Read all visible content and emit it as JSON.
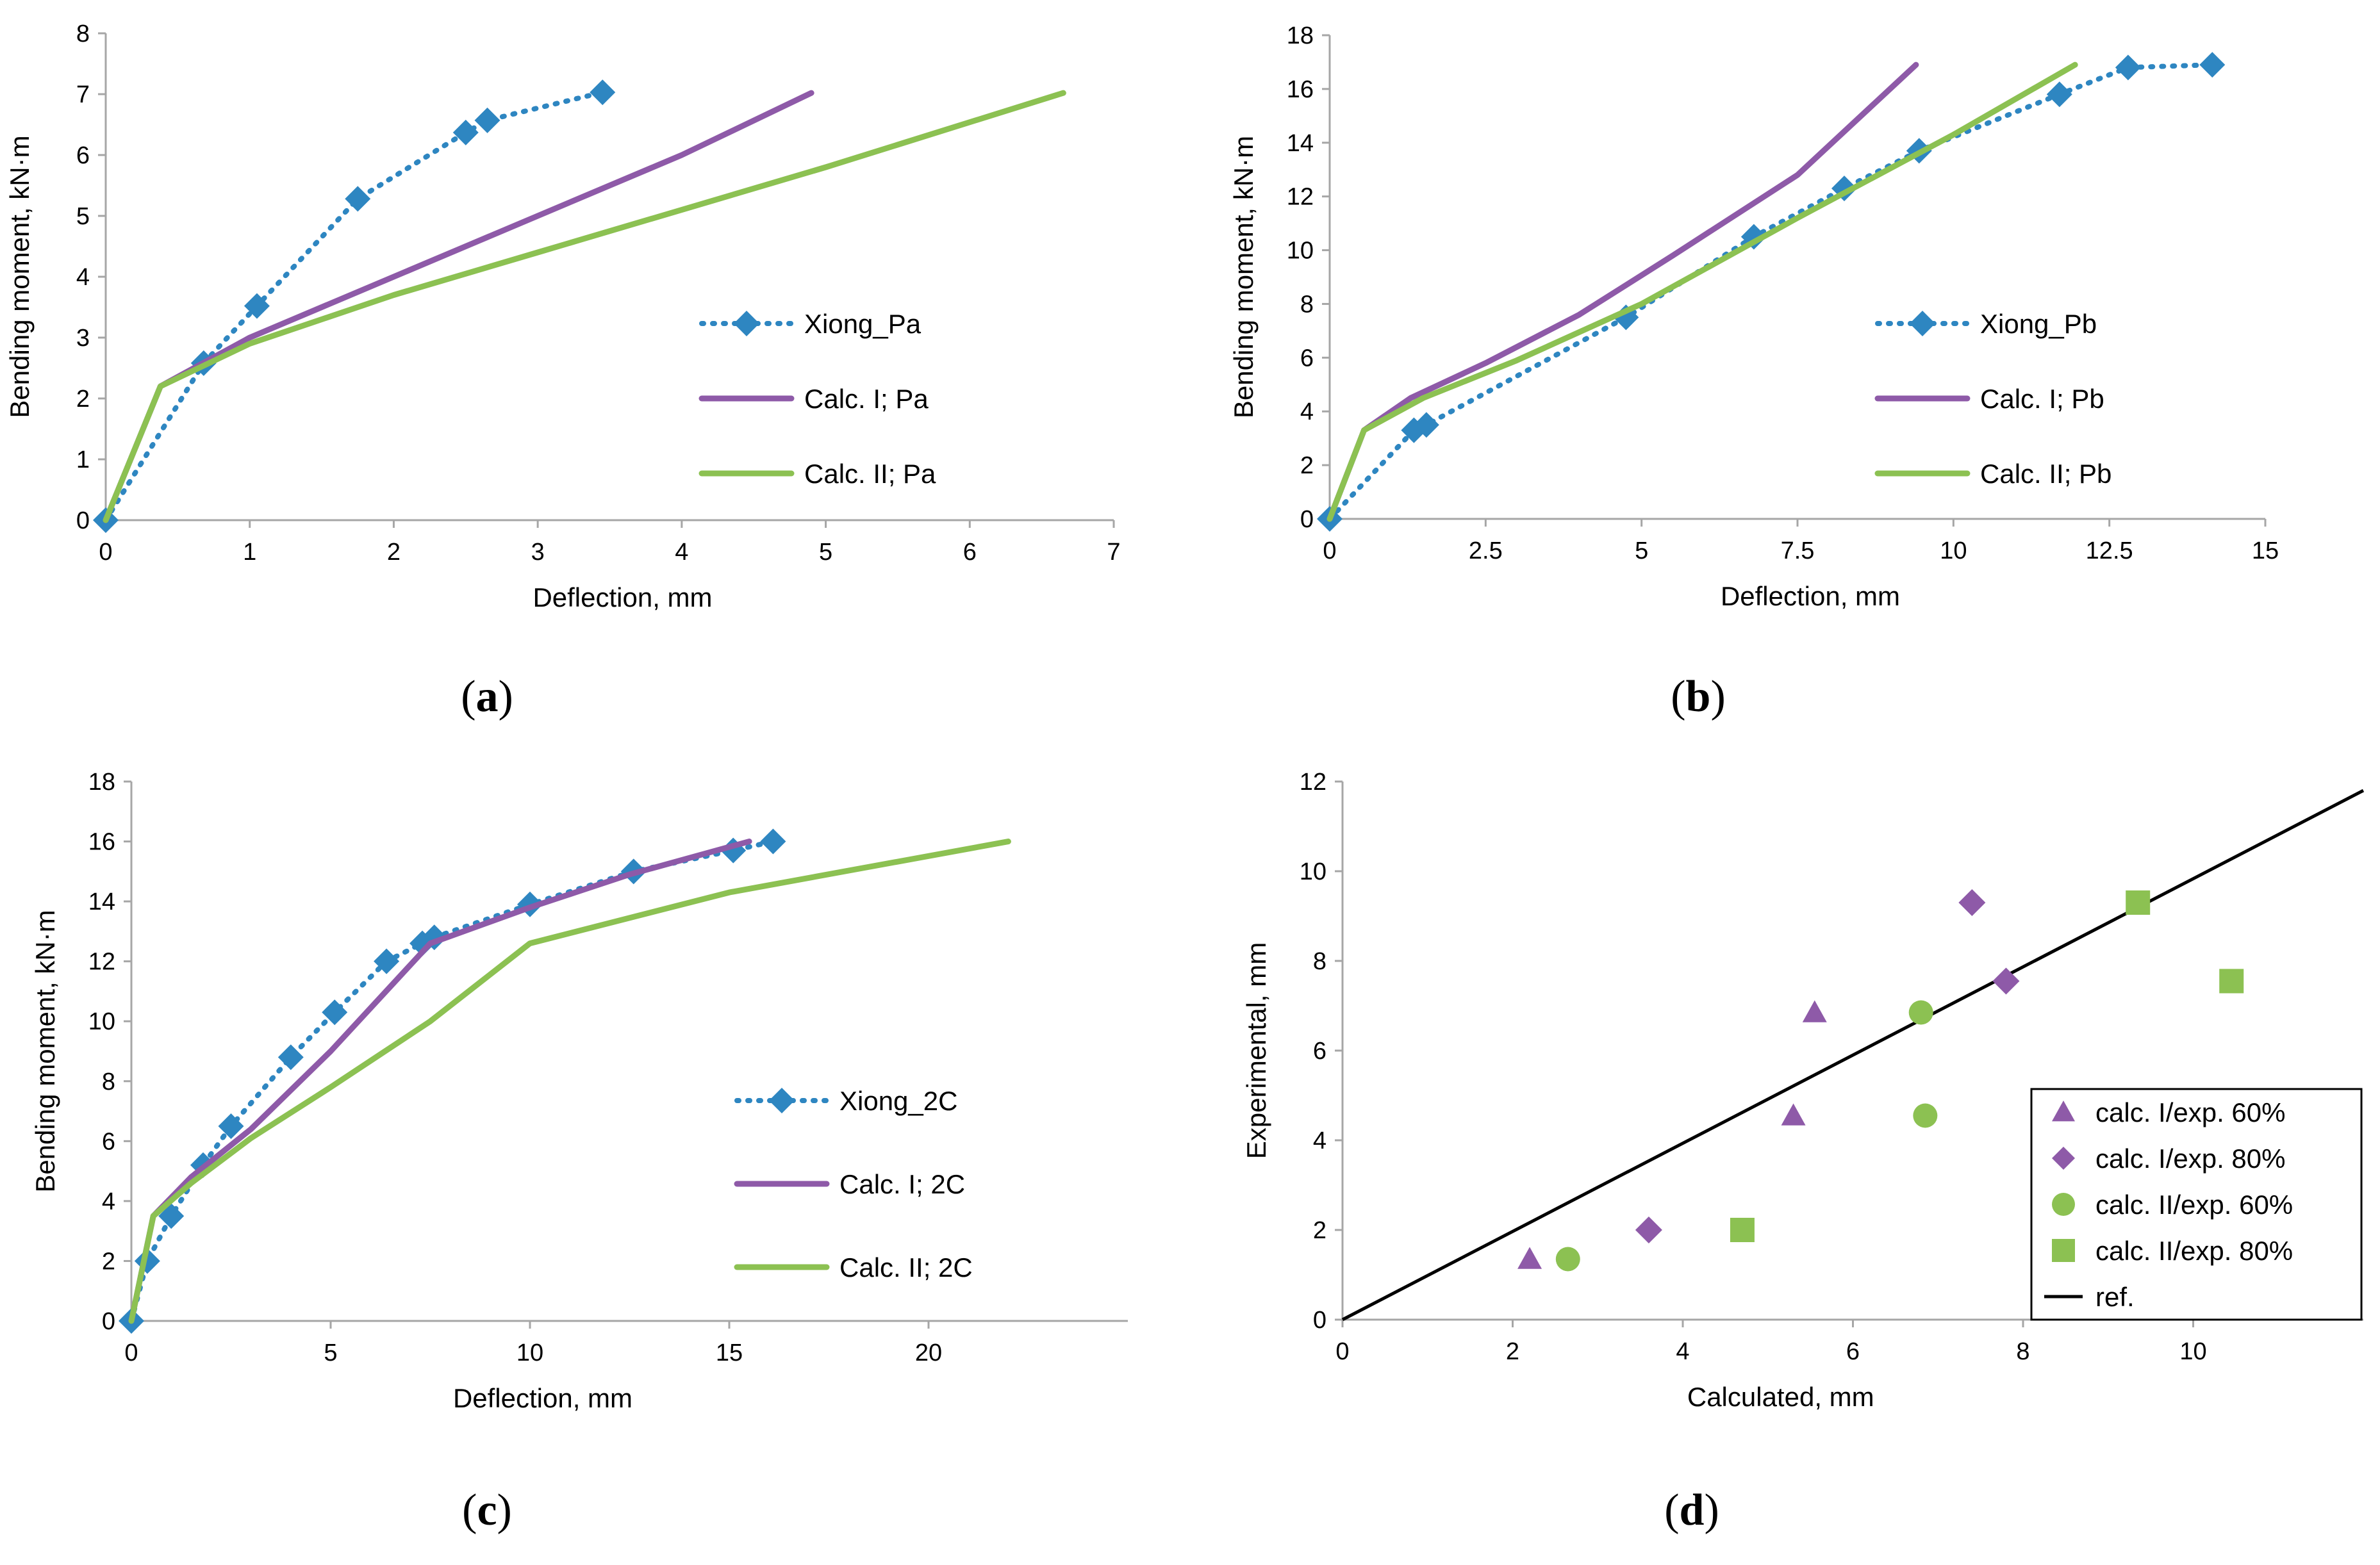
{
  "colors": {
    "xiong": "#2e86c1",
    "calc1": "#8e5aa8",
    "calc2": "#8cc152",
    "ref": "#000000",
    "axis": "#a6a6a6"
  },
  "chart_data": [
    {
      "id": "a",
      "type": "line",
      "panel_label": "a",
      "xlabel": "Deflection, mm",
      "ylabel": "Bending moment, kN·m",
      "xlim": [
        0,
        7
      ],
      "ylim": [
        0,
        8
      ],
      "xticks": [
        0,
        1,
        2,
        3,
        4,
        5,
        6,
        7
      ],
      "xtick_labels": [
        "0",
        "1",
        "2",
        "3",
        "4",
        "5",
        "6",
        "7"
      ],
      "yticks": [
        0,
        1,
        2,
        3,
        4,
        5,
        6,
        7,
        8
      ],
      "ytick_labels": [
        "0",
        "1",
        "2",
        "3",
        "4",
        "5",
        "6",
        "7",
        "8"
      ],
      "legend_position": "center-right",
      "series": [
        {
          "name": "Xiong_Pa",
          "style": "dotted-diamond",
          "color_key": "xiong",
          "points": [
            [
              0,
              0
            ],
            [
              0.68,
              2.58
            ],
            [
              1.05,
              3.52
            ],
            [
              1.75,
              5.28
            ],
            [
              2.5,
              6.37
            ],
            [
              2.65,
              6.57
            ],
            [
              3.45,
              7.03
            ]
          ]
        },
        {
          "name": "Calc.  I; Pa",
          "style": "solid",
          "color_key": "calc1",
          "points": [
            [
              0,
              0
            ],
            [
              0.38,
              2.2
            ],
            [
              1.0,
              3.0
            ],
            [
              2.0,
              4.0
            ],
            [
              3.0,
              5.0
            ],
            [
              4.0,
              6.0
            ],
            [
              4.9,
              7.02
            ]
          ]
        },
        {
          "name": "Calc. II; Pa",
          "style": "solid",
          "color_key": "calc2",
          "points": [
            [
              0,
              0
            ],
            [
              0.38,
              2.2
            ],
            [
              1.0,
              2.9
            ],
            [
              2.0,
              3.7
            ],
            [
              3.0,
              4.4
            ],
            [
              5.0,
              5.8
            ],
            [
              6.65,
              7.02
            ]
          ]
        }
      ]
    },
    {
      "id": "b",
      "type": "line",
      "panel_label": "b",
      "xlabel": "Deflection, mm",
      "ylabel": "Bending moment, kN·m",
      "xlim": [
        0,
        15
      ],
      "ylim": [
        0,
        18
      ],
      "xticks": [
        0,
        2.5,
        5,
        7.5,
        10,
        12.5,
        15
      ],
      "xtick_labels": [
        "0",
        "2.5",
        "5",
        "7.5",
        "10",
        "12.5",
        "15"
      ],
      "yticks": [
        0,
        2,
        4,
        6,
        8,
        10,
        12,
        14,
        16,
        18
      ],
      "ytick_labels": [
        "0",
        "2",
        "4",
        "6",
        "8",
        "10",
        "12",
        "14",
        "16",
        "18"
      ],
      "legend_position": "center-right",
      "series": [
        {
          "name": "Xiong_Pb",
          "style": "dotted-diamond",
          "color_key": "xiong",
          "points": [
            [
              0,
              0
            ],
            [
              1.35,
              3.3
            ],
            [
              1.55,
              3.5
            ],
            [
              4.75,
              7.5
            ],
            [
              6.8,
              10.5
            ],
            [
              8.25,
              12.3
            ],
            [
              9.45,
              13.7
            ],
            [
              11.7,
              15.8
            ],
            [
              12.8,
              16.8
            ],
            [
              14.15,
              16.9
            ]
          ]
        },
        {
          "name": "Calc. I; Pb",
          "style": "solid",
          "color_key": "calc1",
          "points": [
            [
              0,
              0
            ],
            [
              0.55,
              3.3
            ],
            [
              1.3,
              4.5
            ],
            [
              2.5,
              5.8
            ],
            [
              4.0,
              7.6
            ],
            [
              5.5,
              9.8
            ],
            [
              7.5,
              12.8
            ],
            [
              9.4,
              16.9
            ]
          ]
        },
        {
          "name": "Calc. II; Pb",
          "style": "solid",
          "color_key": "calc2",
          "points": [
            [
              0,
              0
            ],
            [
              0.55,
              3.3
            ],
            [
              1.5,
              4.5
            ],
            [
              3.0,
              5.9
            ],
            [
              5.0,
              8.0
            ],
            [
              7.5,
              11.2
            ],
            [
              10.0,
              14.3
            ],
            [
              11.95,
              16.9
            ]
          ]
        }
      ]
    },
    {
      "id": "c",
      "type": "line",
      "panel_label": "c",
      "xlabel": "Deflection, mm",
      "ylabel": "Bending moment, kN·m",
      "xlim": [
        0,
        25
      ],
      "ylim": [
        0,
        18
      ],
      "xticks": [
        0,
        5,
        10,
        15,
        20
      ],
      "xtick_labels": [
        "0",
        "5",
        "10",
        "15",
        "20"
      ],
      "yticks": [
        0,
        2,
        4,
        6,
        8,
        10,
        12,
        14,
        16,
        18
      ],
      "ytick_labels": [
        "0",
        "2",
        "4",
        "6",
        "8",
        "10",
        "12",
        "14",
        "16",
        "18"
      ],
      "legend_position": "center-right",
      "series": [
        {
          "name": "Xiong_2C",
          "style": "dotted-diamond",
          "color_key": "xiong",
          "points": [
            [
              0,
              0
            ],
            [
              0.4,
              2.0
            ],
            [
              1.0,
              3.5
            ],
            [
              1.8,
              5.2
            ],
            [
              2.5,
              6.5
            ],
            [
              4.0,
              8.8
            ],
            [
              5.1,
              10.3
            ],
            [
              6.4,
              12.0
            ],
            [
              7.3,
              12.6
            ],
            [
              7.6,
              12.8
            ],
            [
              10.0,
              13.9
            ],
            [
              12.6,
              15.0
            ],
            [
              15.1,
              15.7
            ],
            [
              16.1,
              16.0
            ]
          ]
        },
        {
          "name": "Calc. I; 2C",
          "style": "solid",
          "color_key": "calc1",
          "points": [
            [
              0,
              0
            ],
            [
              0.55,
              3.5
            ],
            [
              1.5,
              4.8
            ],
            [
              3.0,
              6.4
            ],
            [
              5.0,
              9.0
            ],
            [
              7.5,
              12.6
            ],
            [
              10.0,
              13.8
            ],
            [
              12.5,
              14.9
            ],
            [
              15.5,
              16.0
            ]
          ]
        },
        {
          "name": "Calc. II; 2C",
          "style": "solid",
          "color_key": "calc2",
          "points": [
            [
              0,
              0
            ],
            [
              0.55,
              3.5
            ],
            [
              1.5,
              4.6
            ],
            [
              3.0,
              6.1
            ],
            [
              5.0,
              7.8
            ],
            [
              7.5,
              10.0
            ],
            [
              10.0,
              12.6
            ],
            [
              15.0,
              14.3
            ],
            [
              22.0,
              16.0
            ]
          ]
        }
      ]
    },
    {
      "id": "d",
      "type": "scatter",
      "panel_label": "d",
      "xlabel": "Calculated, mm",
      "ylabel": "Experimental, mm",
      "xlim": [
        0,
        12
      ],
      "ylim": [
        0,
        12
      ],
      "xticks": [
        0,
        2,
        4,
        6,
        8,
        10
      ],
      "xtick_labels": [
        "0",
        "2",
        "4",
        "6",
        "8",
        "10"
      ],
      "yticks": [
        0,
        2,
        4,
        6,
        8,
        10,
        12
      ],
      "ytick_labels": [
        "0",
        "2",
        "4",
        "6",
        "8",
        "10",
        "12"
      ],
      "legend_position": "bottom-right",
      "series": [
        {
          "name": "calc. I/exp. 60%",
          "marker": "triangle",
          "color_key": "calc1",
          "points": [
            [
              2.2,
              1.35
            ],
            [
              5.3,
              4.55
            ],
            [
              5.55,
              6.85
            ]
          ]
        },
        {
          "name": "calc. I/exp. 80%",
          "marker": "diamond",
          "color_key": "calc1",
          "points": [
            [
              3.6,
              2.0
            ],
            [
              7.4,
              9.3
            ],
            [
              7.8,
              7.55
            ]
          ]
        },
        {
          "name": "calc. II/exp. 60%",
          "marker": "circle",
          "color_key": "calc2",
          "points": [
            [
              2.65,
              1.35
            ],
            [
              6.8,
              6.85
            ],
            [
              6.85,
              4.55
            ]
          ]
        },
        {
          "name": "calc. II/exp. 80%",
          "marker": "square",
          "color_key": "calc2",
          "points": [
            [
              4.7,
              2.0
            ],
            [
              9.35,
              9.3
            ],
            [
              10.45,
              7.55
            ]
          ]
        },
        {
          "name": "ref.",
          "marker": "line",
          "color_key": "ref",
          "points": [
            [
              0,
              0
            ],
            [
              12,
              11.8
            ]
          ]
        }
      ]
    }
  ]
}
